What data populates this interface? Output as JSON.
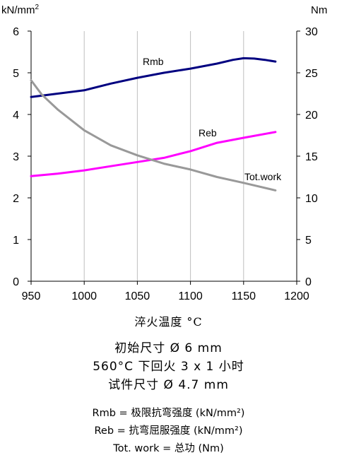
{
  "chart_data": {
    "type": "line",
    "left_axis_unit": "kN/mm2",
    "right_axis_unit": "Nm",
    "xlim": [
      950,
      1200
    ],
    "ylim_left": [
      0,
      6
    ],
    "ylim_right": [
      0,
      30
    ],
    "x_ticks": [
      "950",
      "1000",
      "1050",
      "1100",
      "1150",
      "1200"
    ],
    "y_ticks_left": [
      "0",
      "1",
      "2",
      "3",
      "4",
      "5",
      "6"
    ],
    "y_ticks_right": [
      "0",
      "5",
      "10",
      "15",
      "20",
      "25",
      "30"
    ],
    "grid": "vertical",
    "series": [
      {
        "name": "Rmb",
        "axis": "left",
        "color": "#000080",
        "x": [
          950,
          975,
          1000,
          1025,
          1050,
          1075,
          1100,
          1125,
          1140,
          1150,
          1160,
          1170,
          1180
        ],
        "y": [
          4.42,
          4.5,
          4.58,
          4.74,
          4.88,
          5.0,
          5.1,
          5.22,
          5.31,
          5.35,
          5.34,
          5.31,
          5.27
        ]
      },
      {
        "name": "Reb",
        "axis": "left",
        "color": "#ff00ff",
        "x": [
          950,
          975,
          1000,
          1025,
          1050,
          1075,
          1100,
          1125,
          1150,
          1180
        ],
        "y": [
          2.52,
          2.58,
          2.66,
          2.76,
          2.86,
          2.96,
          3.12,
          3.32,
          3.44,
          3.58
        ]
      },
      {
        "name": "Tot.work",
        "axis": "right",
        "color": "#999999",
        "x": [
          950,
          960,
          975,
          1000,
          1025,
          1050,
          1075,
          1100,
          1125,
          1150,
          1180
        ],
        "y": [
          24.1,
          22.4,
          20.6,
          18.1,
          16.3,
          15.1,
          14.1,
          13.4,
          12.5,
          11.8,
          10.9
        ]
      }
    ]
  },
  "captions": {
    "title": "淬火温度 °C",
    "line1": "初始尺寸 Ø 6 mm",
    "line2": "560°C 下回火 3 x 1 小时",
    "line3": "试件尺寸 Ø 4.7 mm"
  },
  "legend_text": {
    "rmb": "Rmb = 极限抗弯强度 (kN/mm²)",
    "reb": "Reb =  抗弯屈服强度 (kN/mm²)",
    "totwork": "Tot. work = 总功 (Nm)"
  }
}
